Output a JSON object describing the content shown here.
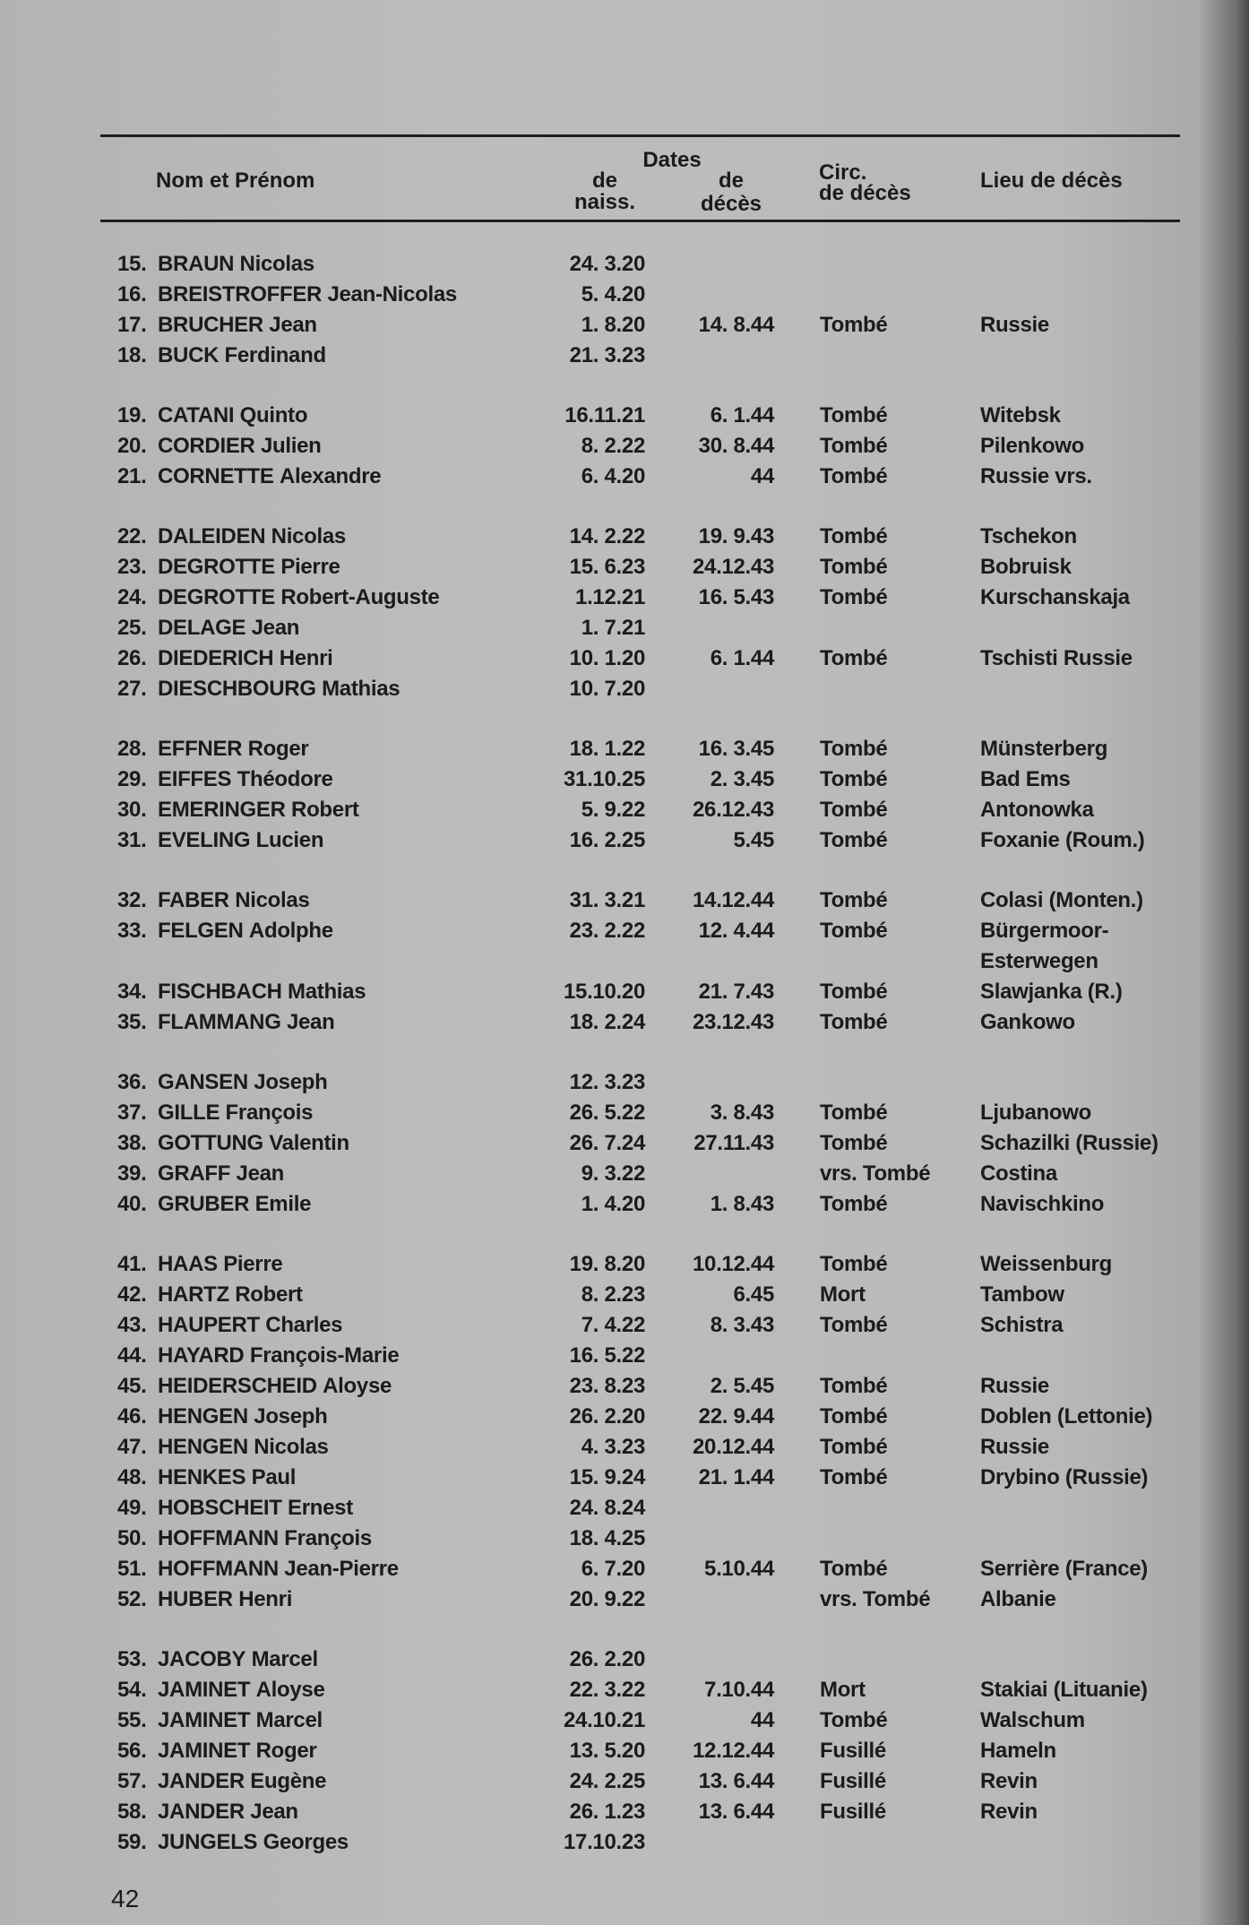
{
  "header": {
    "name": "Nom et Prénom",
    "dates": "Dates",
    "birth_1": "de",
    "birth_2": "naiss.",
    "death_1": "de",
    "death_2": "décès",
    "circ_1": "Circ.",
    "circ_2": "de décès",
    "place": "Lieu de décès"
  },
  "groups": [
    [
      {
        "num": "15.",
        "surname": "BRAUN",
        "first": "Nicolas",
        "birth": "24. 3.20",
        "death": "",
        "circ": "",
        "place": ""
      },
      {
        "num": "16.",
        "surname": "BREISTROFFER",
        "first": "Jean-Nicolas",
        "birth": "5. 4.20",
        "death": "",
        "circ": "",
        "place": ""
      },
      {
        "num": "17.",
        "surname": "BRUCHER",
        "first": "Jean",
        "birth": "1. 8.20",
        "death": "14. 8.44",
        "circ": "Tombé",
        "place": "Russie"
      },
      {
        "num": "18.",
        "surname": "BUCK",
        "first": "Ferdinand",
        "birth": "21. 3.23",
        "death": "",
        "circ": "",
        "place": ""
      }
    ],
    [
      {
        "num": "19.",
        "surname": "CATANI",
        "first": "Quinto",
        "birth": "16.11.21",
        "death": "6. 1.44",
        "circ": "Tombé",
        "place": "Witebsk"
      },
      {
        "num": "20.",
        "surname": "CORDIER",
        "first": "Julien",
        "birth": "8. 2.22",
        "death": "30. 8.44",
        "circ": "Tombé",
        "place": "Pilenkowo"
      },
      {
        "num": "21.",
        "surname": "CORNETTE",
        "first": "Alexandre",
        "birth": "6. 4.20",
        "death": "44",
        "circ": "Tombé",
        "place": "Russie vrs."
      }
    ],
    [
      {
        "num": "22.",
        "surname": "DALEIDEN",
        "first": "Nicolas",
        "birth": "14. 2.22",
        "death": "19. 9.43",
        "circ": "Tombé",
        "place": "Tschekon"
      },
      {
        "num": "23.",
        "surname": "DEGROTTE",
        "first": "Pierre",
        "birth": "15. 6.23",
        "death": "24.12.43",
        "circ": "Tombé",
        "place": "Bobruisk"
      },
      {
        "num": "24.",
        "surname": "DEGROTTE",
        "first": "Robert-Auguste",
        "birth": "1.12.21",
        "death": "16. 5.43",
        "circ": "Tombé",
        "place": "Kurschanskaja"
      },
      {
        "num": "25.",
        "surname": "DELAGE",
        "first": "Jean",
        "birth": "1. 7.21",
        "death": "",
        "circ": "",
        "place": ""
      },
      {
        "num": "26.",
        "surname": "DIEDERICH",
        "first": "Henri",
        "birth": "10. 1.20",
        "death": "6. 1.44",
        "circ": "Tombé",
        "place": "Tschisti Russie"
      },
      {
        "num": "27.",
        "surname": "DIESCHBOURG",
        "first": "Mathias",
        "birth": "10. 7.20",
        "death": "",
        "circ": "",
        "place": ""
      }
    ],
    [
      {
        "num": "28.",
        "surname": "EFFNER",
        "first": "Roger",
        "birth": "18. 1.22",
        "death": "16. 3.45",
        "circ": "Tombé",
        "place": "Münsterberg"
      },
      {
        "num": "29.",
        "surname": "EIFFES",
        "first": "Théodore",
        "birth": "31.10.25",
        "death": "2. 3.45",
        "circ": "Tombé",
        "place": "Bad Ems"
      },
      {
        "num": "30.",
        "surname": "EMERINGER",
        "first": "Robert",
        "birth": "5. 9.22",
        "death": "26.12.43",
        "circ": "Tombé",
        "place": "Antonowka"
      },
      {
        "num": "31.",
        "surname": "EVELING",
        "first": "Lucien",
        "birth": "16. 2.25",
        "death": "5.45",
        "circ": "Tombé",
        "place": "Foxanie (Roum.)"
      }
    ],
    [
      {
        "num": "32.",
        "surname": "FABER",
        "first": "Nicolas",
        "birth": "31. 3.21",
        "death": "14.12.44",
        "circ": "Tombé",
        "place": "Colasi (Monten.)"
      },
      {
        "num": "33.",
        "surname": "FELGEN",
        "first": "Adolphe",
        "birth": "23. 2.22",
        "death": "12. 4.44",
        "circ": "Tombé",
        "place": "Bürgermoor-",
        "place2": "Esterwegen"
      },
      {
        "num": "34.",
        "surname": "FISCHBACH",
        "first": "Mathias",
        "birth": "15.10.20",
        "death": "21. 7.43",
        "circ": "Tombé",
        "place": "Slawjanka (R.)"
      },
      {
        "num": "35.",
        "surname": "FLAMMANG",
        "first": "Jean",
        "birth": "18. 2.24",
        "death": "23.12.43",
        "circ": "Tombé",
        "place": "Gankowo"
      }
    ],
    [
      {
        "num": "36.",
        "surname": "GANSEN",
        "first": "Joseph",
        "birth": "12. 3.23",
        "death": "",
        "circ": "",
        "place": ""
      },
      {
        "num": "37.",
        "surname": "GILLE",
        "first": "François",
        "birth": "26. 5.22",
        "death": "3. 8.43",
        "circ": "Tombé",
        "place": "Ljubanowo"
      },
      {
        "num": "38.",
        "surname": "GOTTUNG",
        "first": "Valentin",
        "birth": "26. 7.24",
        "death": "27.11.43",
        "circ": "Tombé",
        "place": "Schazilki (Russie)"
      },
      {
        "num": "39.",
        "surname": "GRAFF",
        "first": "Jean",
        "birth": "9. 3.22",
        "death": "",
        "circ": "vrs. Tombé",
        "place": "Costina"
      },
      {
        "num": "40.",
        "surname": "GRUBER",
        "first": "Emile",
        "birth": "1. 4.20",
        "death": "1. 8.43",
        "circ": "Tombé",
        "place": "Navischkino"
      }
    ],
    [
      {
        "num": "41.",
        "surname": "HAAS",
        "first": "Pierre",
        "birth": "19. 8.20",
        "death": "10.12.44",
        "circ": "Tombé",
        "place": "Weissenburg"
      },
      {
        "num": "42.",
        "surname": "HARTZ",
        "first": "Robert",
        "birth": "8. 2.23",
        "death": "6.45",
        "circ": "Mort",
        "place": "Tambow"
      },
      {
        "num": "43.",
        "surname": "HAUPERT",
        "first": "Charles",
        "birth": "7. 4.22",
        "death": "8. 3.43",
        "circ": "Tombé",
        "place": "Schistra"
      },
      {
        "num": "44.",
        "surname": "HAYARD",
        "first": "François-Marie",
        "birth": "16. 5.22",
        "death": "",
        "circ": "",
        "place": ""
      },
      {
        "num": "45.",
        "surname": "HEIDERSCHEID",
        "first": "Aloyse",
        "birth": "23. 8.23",
        "death": "2. 5.45",
        "circ": "Tombé",
        "place": "Russie"
      },
      {
        "num": "46.",
        "surname": "HENGEN",
        "first": "Joseph",
        "birth": "26. 2.20",
        "death": "22. 9.44",
        "circ": "Tombé",
        "place": "Doblen (Lettonie)"
      },
      {
        "num": "47.",
        "surname": "HENGEN",
        "first": "Nicolas",
        "birth": "4. 3.23",
        "death": "20.12.44",
        "circ": "Tombé",
        "place": "Russie"
      },
      {
        "num": "48.",
        "surname": "HENKES",
        "first": "Paul",
        "birth": "15. 9.24",
        "death": "21. 1.44",
        "circ": "Tombé",
        "place": "Drybino (Russie)"
      },
      {
        "num": "49.",
        "surname": "HOBSCHEIT",
        "first": "Ernest",
        "birth": "24. 8.24",
        "death": "",
        "circ": "",
        "place": ""
      },
      {
        "num": "50.",
        "surname": "HOFFMANN",
        "first": "François",
        "birth": "18. 4.25",
        "death": "",
        "circ": "",
        "place": ""
      },
      {
        "num": "51.",
        "surname": "HOFFMANN",
        "first": "Jean-Pierre",
        "birth": "6. 7.20",
        "death": "5.10.44",
        "circ": "Tombé",
        "place": "Serrière (France)"
      },
      {
        "num": "52.",
        "surname": "HUBER",
        "first": "Henri",
        "birth": "20. 9.22",
        "death": "",
        "circ": "vrs. Tombé",
        "place": "Albanie"
      }
    ],
    [
      {
        "num": "53.",
        "surname": "JACOBY",
        "first": "Marcel",
        "birth": "26. 2.20",
        "death": "",
        "circ": "",
        "place": ""
      },
      {
        "num": "54.",
        "surname": "JAMINET",
        "first": "Aloyse",
        "birth": "22. 3.22",
        "death": "7.10.44",
        "circ": "Mort",
        "place": "Stakiai (Lituanie)"
      },
      {
        "num": "55.",
        "surname": "JAMINET",
        "first": "Marcel",
        "birth": "24.10.21",
        "death": "44",
        "circ": "Tombé",
        "place": "Walschum"
      },
      {
        "num": "56.",
        "surname": "JAMINET",
        "first": "Roger",
        "birth": "13. 5.20",
        "death": "12.12.44",
        "circ": "Fusillé",
        "place": "Hameln"
      },
      {
        "num": "57.",
        "surname": "JANDER",
        "first": "Eugène",
        "birth": "24. 2.25",
        "death": "13. 6.44",
        "circ": "Fusillé",
        "place": "Revin"
      },
      {
        "num": "58.",
        "surname": "JANDER",
        "first": "Jean",
        "birth": "26. 1.23",
        "death": "13. 6.44",
        "circ": "Fusillé",
        "place": "Revin"
      },
      {
        "num": "59.",
        "surname": "JUNGELS",
        "first": "Georges",
        "birth": "17.10.23",
        "death": "",
        "circ": "",
        "place": ""
      }
    ]
  ],
  "page_number": "42"
}
